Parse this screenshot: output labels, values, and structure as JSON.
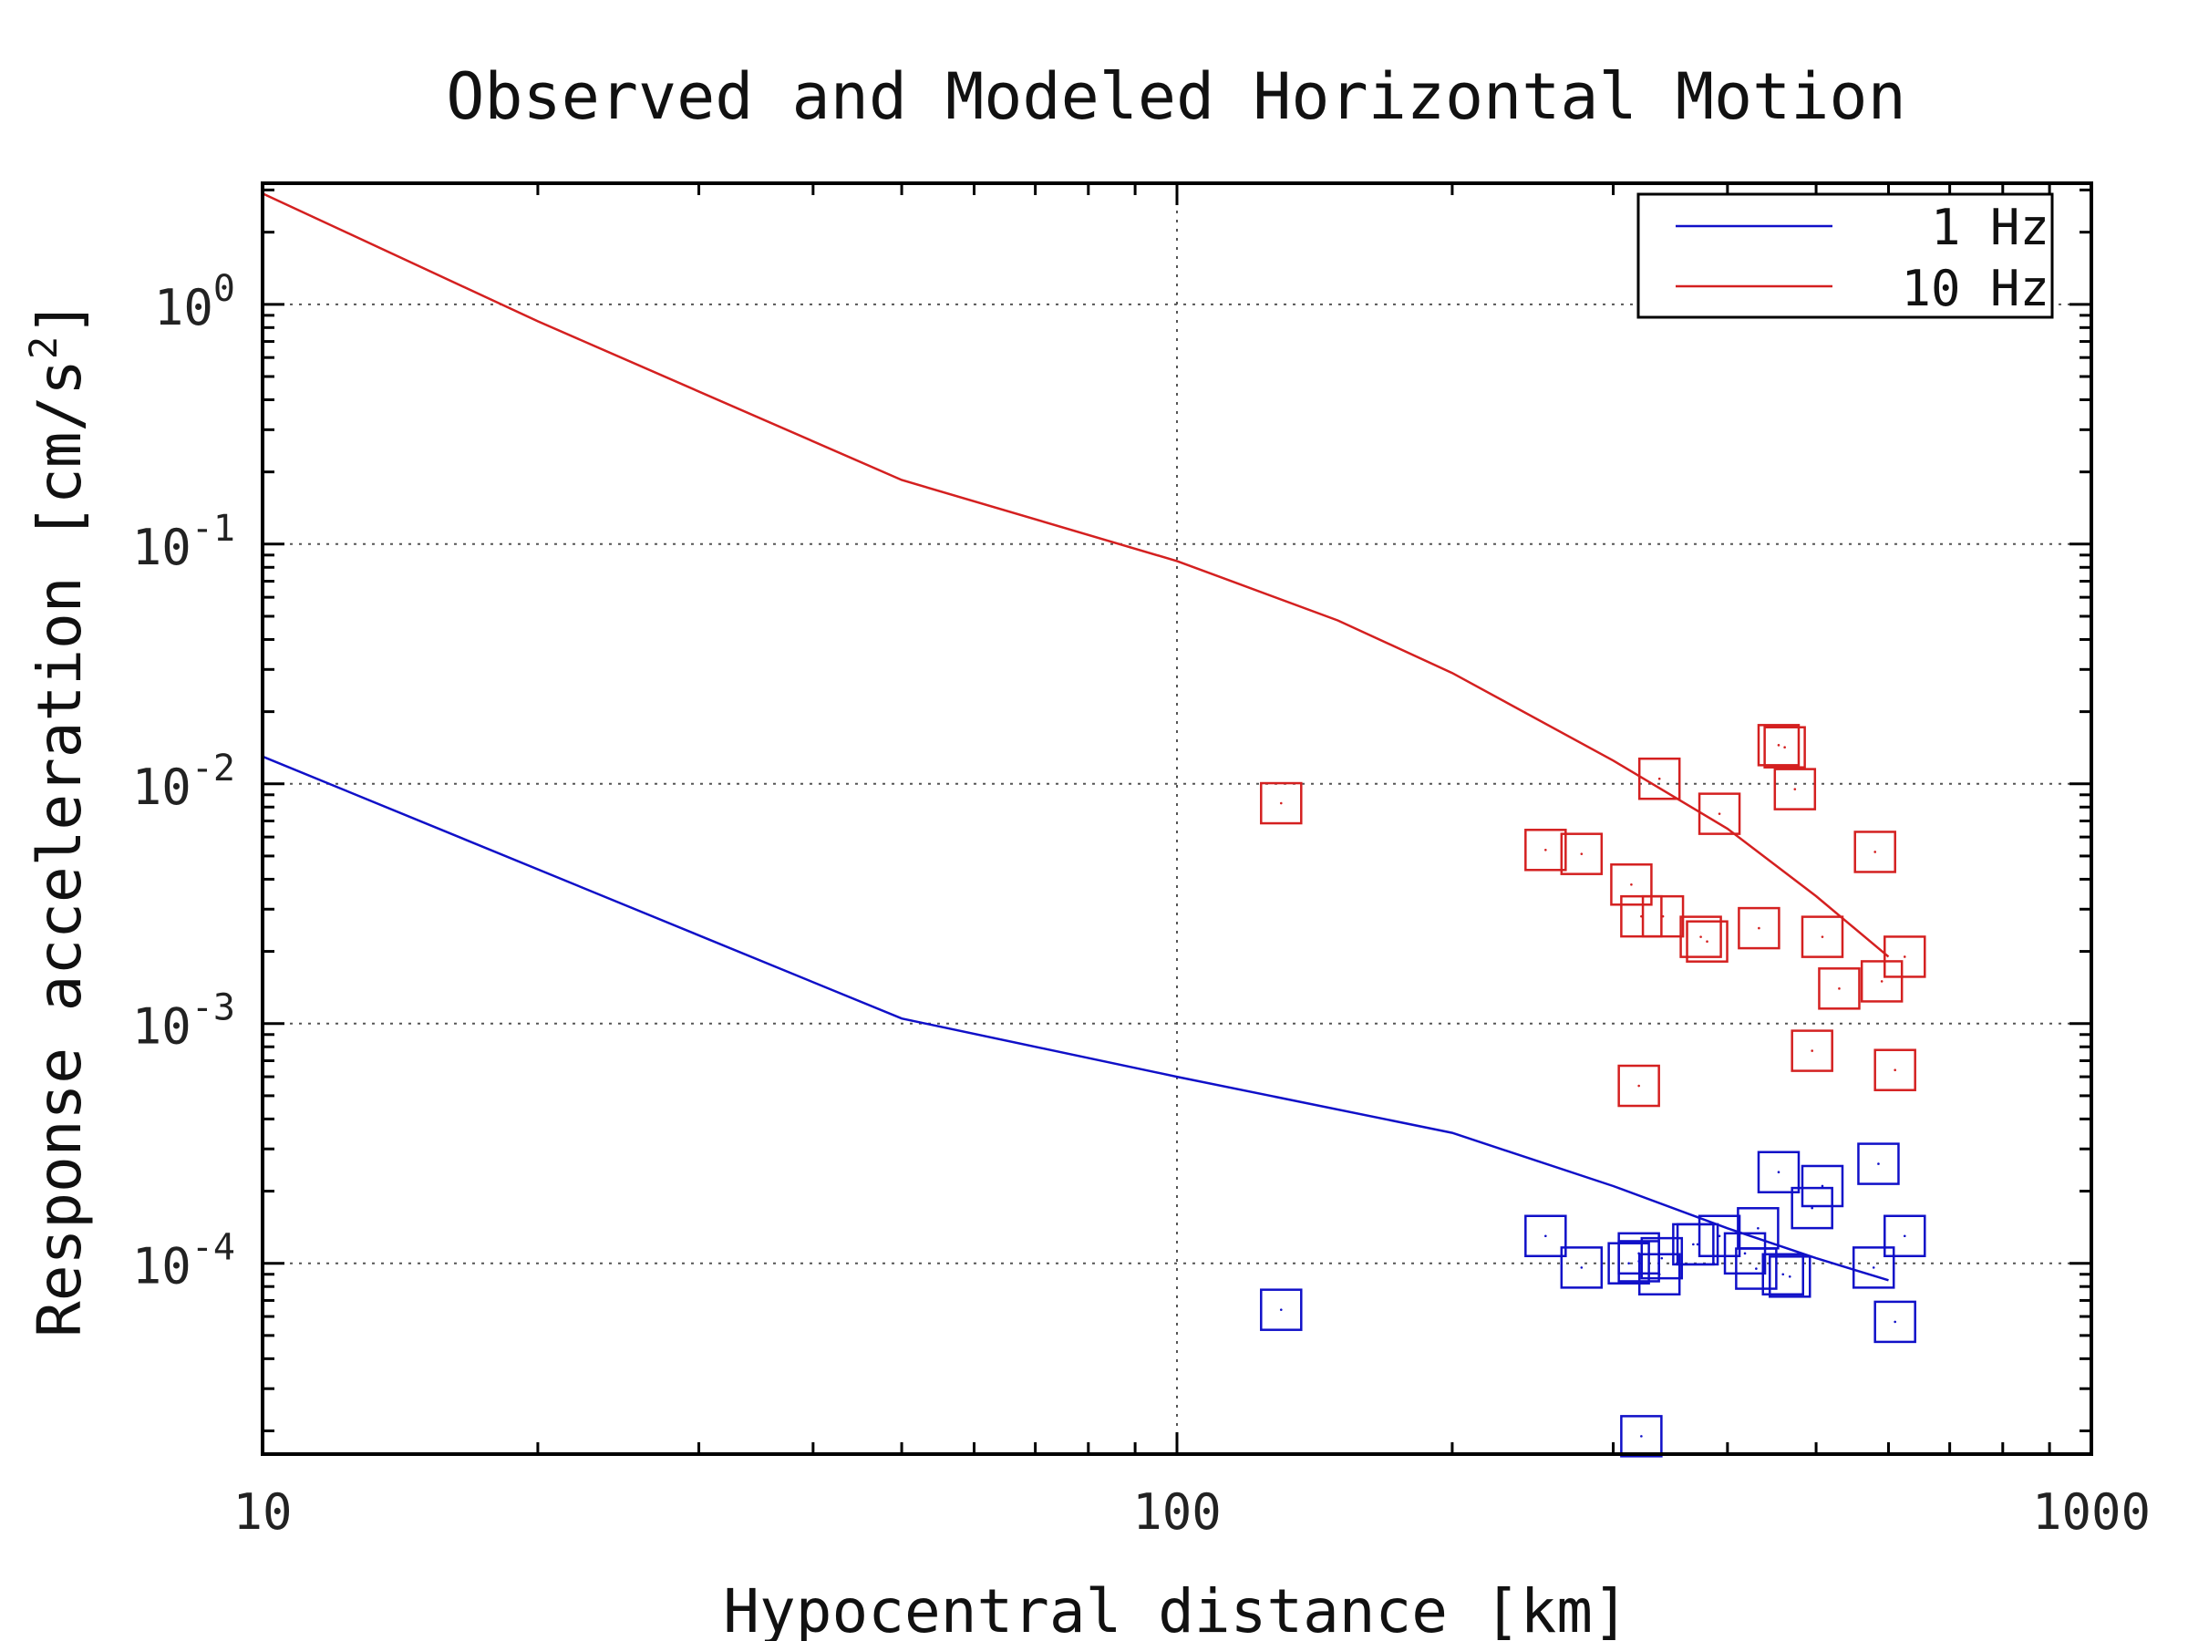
{
  "chart_data": {
    "type": "scatter",
    "title": "Observed and Modeled Horizontal Motion",
    "xlabel": "Hypocentral distance [km]",
    "ylabel": "Response acceleration [cm/s",
    "ylabel_superscript": "2",
    "ylabel_end": "]",
    "x_scale": "log",
    "y_scale": "log",
    "xlim": [
      10,
      1000
    ],
    "ylim": [
      1.6e-05,
      3.2
    ],
    "x_ticks": [
      10,
      100,
      1000
    ],
    "x_tick_labels": [
      "10",
      "100",
      "1000"
    ],
    "y_ticks": [
      1,
      0.1,
      0.01,
      0.001,
      0.0001
    ],
    "y_tick_bases": [
      "10",
      "10",
      "10",
      "10",
      "10"
    ],
    "y_tick_exponents": [
      "0",
      "-1",
      "-2",
      "-3",
      "-4"
    ],
    "grid": true,
    "legend_position": "top-right",
    "series": [
      {
        "name": "1 Hz",
        "color": "#1010c8",
        "line": {
          "x": [
            10,
            50,
            100,
            200,
            300,
            400,
            500,
            600
          ],
          "y": [
            0.013,
            0.00105,
            0.0006,
            0.00035,
            0.00021,
            0.00014,
            0.000105,
            8.5e-05
          ]
        },
        "points": {
          "x": [
            130,
            253,
            277,
            312,
            320,
            322,
            337,
            339,
            367,
            371,
            392,
            418,
            430,
            432,
            455,
            460,
            468,
            495,
            508,
            578,
            585,
            610,
            625,
            320
          ],
          "y": [
            6.4e-05,
            0.00013,
            9.6e-05,
            0.0001,
            0.00011,
            1.9e-05,
            9e-05,
            0.000105,
            0.00012,
            0.00012,
            0.00013,
            0.00011,
            9.5e-05,
            0.00014,
            0.00024,
            9e-05,
            8.8e-05,
            0.00017,
            0.00021,
            9.6e-05,
            0.00026,
            5.7e-05,
            0.00013,
            0.000102
          ]
        }
      },
      {
        "name": "10 Hz",
        "color": "#d42020",
        "line": {
          "x": [
            10,
            20,
            50,
            100,
            150,
            200,
            300,
            400,
            500,
            600
          ],
          "y": [
            2.9,
            0.85,
            0.185,
            0.085,
            0.048,
            0.029,
            0.0125,
            0.0065,
            0.0034,
            0.0019
          ]
        },
        "points": {
          "x": [
            130,
            253,
            277,
            314,
            320,
            337,
            322,
            340,
            374,
            380,
            392,
            433,
            455,
            462,
            474,
            495,
            508,
            530,
            580,
            590,
            610,
            625
          ],
          "y": [
            0.0083,
            0.0053,
            0.0051,
            0.0038,
            0.00055,
            0.0105,
            0.0028,
            0.0028,
            0.0023,
            0.0022,
            0.0075,
            0.0025,
            0.0145,
            0.0142,
            0.0095,
            0.00077,
            0.0023,
            0.0014,
            0.0052,
            0.0015,
            0.00064,
            0.0019
          ]
        }
      }
    ]
  }
}
